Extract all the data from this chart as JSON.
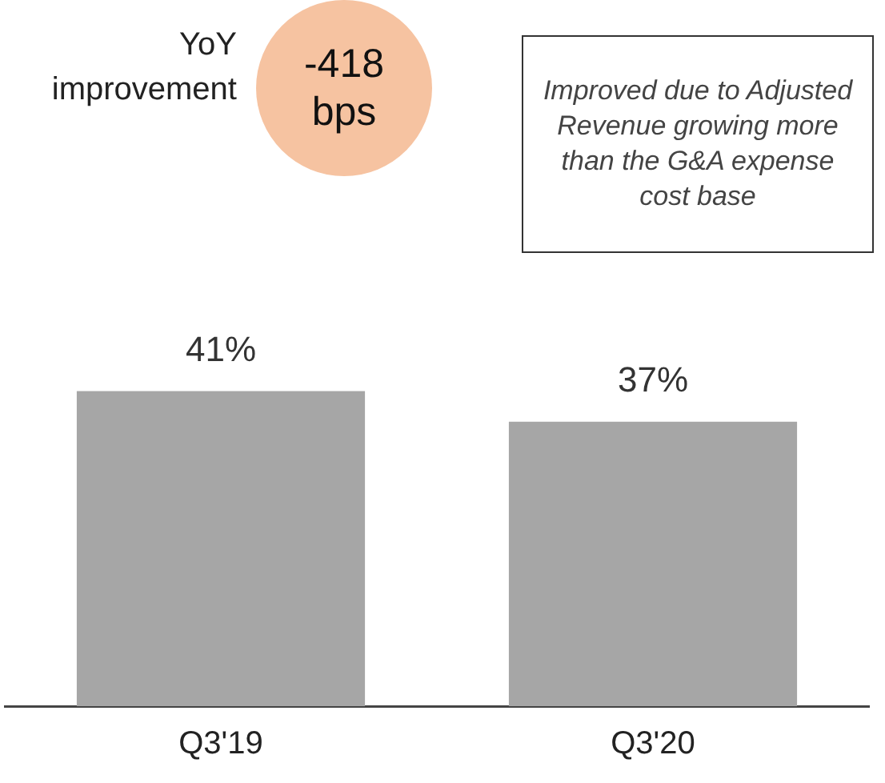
{
  "chart_data": {
    "type": "bar",
    "categories": [
      "Q3'19",
      "Q3'20"
    ],
    "values": [
      41,
      37
    ],
    "color": "#a6a6a6",
    "tick_labels": "x",
    "data_labels": true,
    "value_labels": [
      "41%",
      "37%"
    ],
    "grid": false,
    "legend": false,
    "annotations": [
      "YoY improvement",
      "-418 bps",
      "Improved due to Adjusted Revenue growing more than the G&A expense cost base"
    ]
  }
}
